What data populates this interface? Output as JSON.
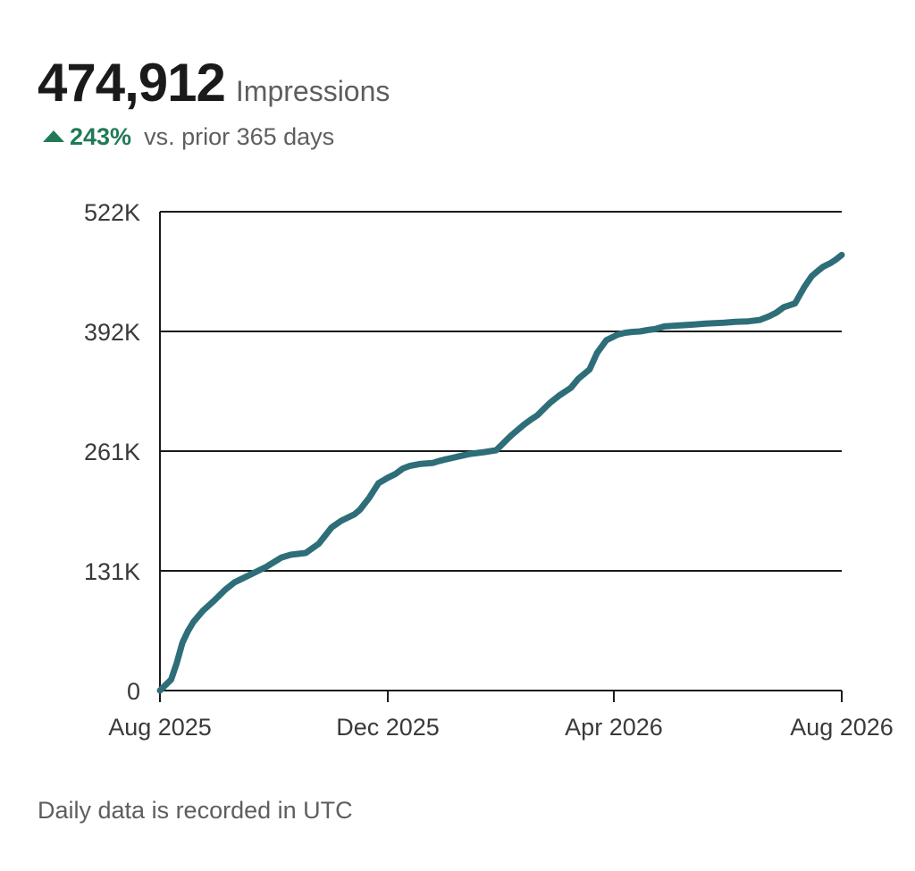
{
  "header": {
    "value": "474,912",
    "metric": "Impressions",
    "delta_value": "243%",
    "delta_text": "vs. prior 365 days",
    "delta_direction": "up",
    "delta_color": "#1f7a55"
  },
  "footnote": "Daily data is recorded in UTC",
  "chart_data": {
    "type": "line",
    "title": "",
    "xlabel": "",
    "ylabel": "",
    "line_color": "#2e6e78",
    "grid": true,
    "ylim": [
      0,
      522000
    ],
    "y_ticks": [
      {
        "value": 0,
        "label": "0"
      },
      {
        "value": 130500,
        "label": "131K"
      },
      {
        "value": 261000,
        "label": "261K"
      },
      {
        "value": 391500,
        "label": "392K"
      },
      {
        "value": 522000,
        "label": "522K"
      }
    ],
    "xlim": [
      "2025-08-01",
      "2026-08-01"
    ],
    "x_ticks": [
      {
        "value": "2025-08-01",
        "label": "Aug 2025"
      },
      {
        "value": "2025-12-01",
        "label": "Dec 2025"
      },
      {
        "value": "2026-04-01",
        "label": "Apr 2026"
      },
      {
        "value": "2026-08-01",
        "label": "Aug 2026"
      }
    ],
    "series": [
      {
        "x": [
          "2025-08-01",
          "2025-08-04",
          "2025-08-07",
          "2025-08-10",
          "2025-08-13",
          "2025-08-16",
          "2025-08-19",
          "2025-08-24",
          "2025-08-30",
          "2025-09-05",
          "2025-09-10",
          "2025-09-15",
          "2025-09-20",
          "2025-09-27",
          "2025-10-05",
          "2025-10-10",
          "2025-10-18",
          "2025-10-25",
          "2025-11-01",
          "2025-11-06",
          "2025-11-13",
          "2025-11-16",
          "2025-11-21",
          "2025-11-26",
          "2025-12-01",
          "2025-12-05",
          "2025-12-09",
          "2025-12-13",
          "2025-12-18",
          "2025-12-25",
          "2025-12-28",
          "2026-01-01",
          "2026-01-14",
          "2026-01-22",
          "2026-01-28",
          "2026-02-05",
          "2026-02-12",
          "2026-02-16",
          "2026-02-19",
          "2026-02-23",
          "2026-02-26",
          "2026-03-03",
          "2026-03-09",
          "2026-03-13",
          "2026-03-19",
          "2026-03-23",
          "2026-03-28",
          "2026-04-03",
          "2026-04-07",
          "2026-04-11",
          "2026-04-15",
          "2026-04-19",
          "2026-04-23",
          "2026-04-28",
          "2026-05-06",
          "2026-05-14",
          "2026-05-20",
          "2026-05-30",
          "2026-06-05",
          "2026-06-12",
          "2026-06-18",
          "2026-06-23",
          "2026-06-27",
          "2026-07-01",
          "2026-07-07",
          "2026-07-12",
          "2026-07-16",
          "2026-07-19",
          "2026-07-22",
          "2026-07-26",
          "2026-07-29",
          "2026-08-01"
        ],
        "y": [
          0,
          6000,
          12000,
          30000,
          52000,
          65000,
          75000,
          87000,
          98000,
          110000,
          118000,
          123000,
          128000,
          135000,
          145000,
          148000,
          150000,
          160000,
          178000,
          185000,
          192000,
          197000,
          210000,
          226000,
          232000,
          236000,
          242000,
          245000,
          247000,
          248000,
          250000,
          252000,
          258000,
          260000,
          262000,
          278000,
          290000,
          296000,
          300000,
          308000,
          314000,
          322000,
          330000,
          340000,
          350000,
          368000,
          382000,
          388000,
          390000,
          391000,
          391500,
          393000,
          394000,
          397000,
          398000,
          399000,
          400000,
          401000,
          402000,
          402500,
          404000,
          408000,
          412000,
          418000,
          422000,
          440000,
          452000,
          457000,
          462000,
          466000,
          470000,
          474912
        ]
      }
    ]
  }
}
